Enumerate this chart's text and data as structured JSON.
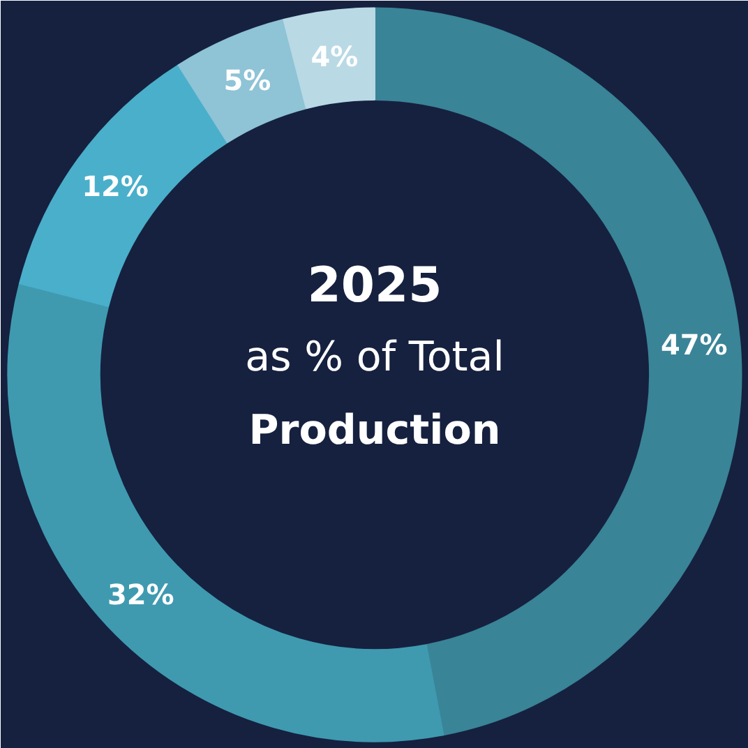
{
  "chart_data": {
    "type": "donut",
    "categories": [
      null,
      null,
      null,
      null,
      null
    ],
    "values": [
      47,
      32,
      12,
      5,
      4
    ],
    "colors": [
      "#3a8497",
      "#3f9ab0",
      "#4aafca",
      "#8fc3d6",
      "#b9d9e5"
    ],
    "value_labels": [
      "47%",
      "32%",
      "12%",
      "5%",
      "4%"
    ],
    "annotations": [
      "2025",
      "as % of Total",
      "Production"
    ],
    "legend": false
  }
}
